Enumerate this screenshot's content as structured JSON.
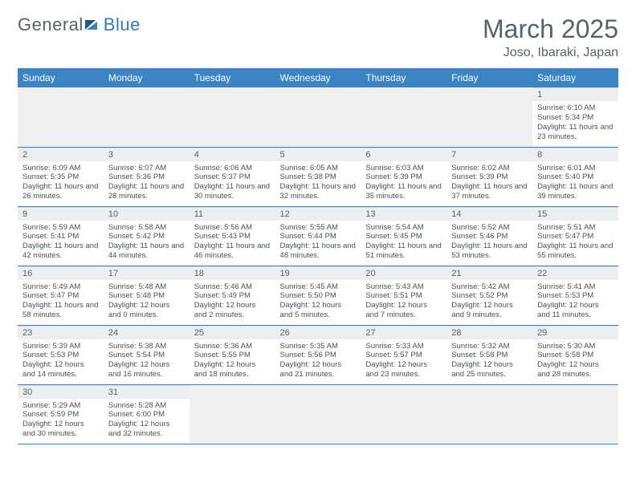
{
  "logo": {
    "part1": "General",
    "part2": "Blue"
  },
  "title": "March 2025",
  "location": "Joso, Ibaraki, Japan",
  "colors": {
    "header_bg": "#3a83c5",
    "header_text": "#ffffff",
    "daynum_bg": "#eceeef",
    "empty_bg": "#f0f0f0",
    "rule": "#3a83c5",
    "text": "#4a5257",
    "logo_gray": "#5a6268",
    "logo_blue": "#2f7ac0"
  },
  "weekdays": [
    "Sunday",
    "Monday",
    "Tuesday",
    "Wednesday",
    "Thursday",
    "Friday",
    "Saturday"
  ],
  "weeks": [
    [
      null,
      null,
      null,
      null,
      null,
      null,
      {
        "n": "1",
        "sr": "Sunrise: 6:10 AM",
        "ss": "Sunset: 5:34 PM",
        "dl": "Daylight: 11 hours and 23 minutes."
      }
    ],
    [
      {
        "n": "2",
        "sr": "Sunrise: 6:09 AM",
        "ss": "Sunset: 5:35 PM",
        "dl": "Daylight: 11 hours and 26 minutes."
      },
      {
        "n": "3",
        "sr": "Sunrise: 6:07 AM",
        "ss": "Sunset: 5:36 PM",
        "dl": "Daylight: 11 hours and 28 minutes."
      },
      {
        "n": "4",
        "sr": "Sunrise: 6:06 AM",
        "ss": "Sunset: 5:37 PM",
        "dl": "Daylight: 11 hours and 30 minutes."
      },
      {
        "n": "5",
        "sr": "Sunrise: 6:05 AM",
        "ss": "Sunset: 5:38 PM",
        "dl": "Daylight: 11 hours and 32 minutes."
      },
      {
        "n": "6",
        "sr": "Sunrise: 6:03 AM",
        "ss": "Sunset: 5:39 PM",
        "dl": "Daylight: 11 hours and 35 minutes."
      },
      {
        "n": "7",
        "sr": "Sunrise: 6:02 AM",
        "ss": "Sunset: 5:39 PM",
        "dl": "Daylight: 11 hours and 37 minutes."
      },
      {
        "n": "8",
        "sr": "Sunrise: 6:01 AM",
        "ss": "Sunset: 5:40 PM",
        "dl": "Daylight: 11 hours and 39 minutes."
      }
    ],
    [
      {
        "n": "9",
        "sr": "Sunrise: 5:59 AM",
        "ss": "Sunset: 5:41 PM",
        "dl": "Daylight: 11 hours and 42 minutes."
      },
      {
        "n": "10",
        "sr": "Sunrise: 5:58 AM",
        "ss": "Sunset: 5:42 PM",
        "dl": "Daylight: 11 hours and 44 minutes."
      },
      {
        "n": "11",
        "sr": "Sunrise: 5:56 AM",
        "ss": "Sunset: 5:43 PM",
        "dl": "Daylight: 11 hours and 46 minutes."
      },
      {
        "n": "12",
        "sr": "Sunrise: 5:55 AM",
        "ss": "Sunset: 5:44 PM",
        "dl": "Daylight: 11 hours and 48 minutes."
      },
      {
        "n": "13",
        "sr": "Sunrise: 5:54 AM",
        "ss": "Sunset: 5:45 PM",
        "dl": "Daylight: 11 hours and 51 minutes."
      },
      {
        "n": "14",
        "sr": "Sunrise: 5:52 AM",
        "ss": "Sunset: 5:46 PM",
        "dl": "Daylight: 11 hours and 53 minutes."
      },
      {
        "n": "15",
        "sr": "Sunrise: 5:51 AM",
        "ss": "Sunset: 5:47 PM",
        "dl": "Daylight: 11 hours and 55 minutes."
      }
    ],
    [
      {
        "n": "16",
        "sr": "Sunrise: 5:49 AM",
        "ss": "Sunset: 5:47 PM",
        "dl": "Daylight: 11 hours and 58 minutes."
      },
      {
        "n": "17",
        "sr": "Sunrise: 5:48 AM",
        "ss": "Sunset: 5:48 PM",
        "dl": "Daylight: 12 hours and 0 minutes."
      },
      {
        "n": "18",
        "sr": "Sunrise: 5:46 AM",
        "ss": "Sunset: 5:49 PM",
        "dl": "Daylight: 12 hours and 2 minutes."
      },
      {
        "n": "19",
        "sr": "Sunrise: 5:45 AM",
        "ss": "Sunset: 5:50 PM",
        "dl": "Daylight: 12 hours and 5 minutes."
      },
      {
        "n": "20",
        "sr": "Sunrise: 5:43 AM",
        "ss": "Sunset: 5:51 PM",
        "dl": "Daylight: 12 hours and 7 minutes."
      },
      {
        "n": "21",
        "sr": "Sunrise: 5:42 AM",
        "ss": "Sunset: 5:52 PM",
        "dl": "Daylight: 12 hours and 9 minutes."
      },
      {
        "n": "22",
        "sr": "Sunrise: 5:41 AM",
        "ss": "Sunset: 5:53 PM",
        "dl": "Daylight: 12 hours and 11 minutes."
      }
    ],
    [
      {
        "n": "23",
        "sr": "Sunrise: 5:39 AM",
        "ss": "Sunset: 5:53 PM",
        "dl": "Daylight: 12 hours and 14 minutes."
      },
      {
        "n": "24",
        "sr": "Sunrise: 5:38 AM",
        "ss": "Sunset: 5:54 PM",
        "dl": "Daylight: 12 hours and 16 minutes."
      },
      {
        "n": "25",
        "sr": "Sunrise: 5:36 AM",
        "ss": "Sunset: 5:55 PM",
        "dl": "Daylight: 12 hours and 18 minutes."
      },
      {
        "n": "26",
        "sr": "Sunrise: 5:35 AM",
        "ss": "Sunset: 5:56 PM",
        "dl": "Daylight: 12 hours and 21 minutes."
      },
      {
        "n": "27",
        "sr": "Sunrise: 5:33 AM",
        "ss": "Sunset: 5:57 PM",
        "dl": "Daylight: 12 hours and 23 minutes."
      },
      {
        "n": "28",
        "sr": "Sunrise: 5:32 AM",
        "ss": "Sunset: 5:58 PM",
        "dl": "Daylight: 12 hours and 25 minutes."
      },
      {
        "n": "29",
        "sr": "Sunrise: 5:30 AM",
        "ss": "Sunset: 5:58 PM",
        "dl": "Daylight: 12 hours and 28 minutes."
      }
    ],
    [
      {
        "n": "30",
        "sr": "Sunrise: 5:29 AM",
        "ss": "Sunset: 5:59 PM",
        "dl": "Daylight: 12 hours and 30 minutes."
      },
      {
        "n": "31",
        "sr": "Sunrise: 5:28 AM",
        "ss": "Sunset: 6:00 PM",
        "dl": "Daylight: 12 hours and 32 minutes."
      },
      null,
      null,
      null,
      null,
      null
    ]
  ]
}
